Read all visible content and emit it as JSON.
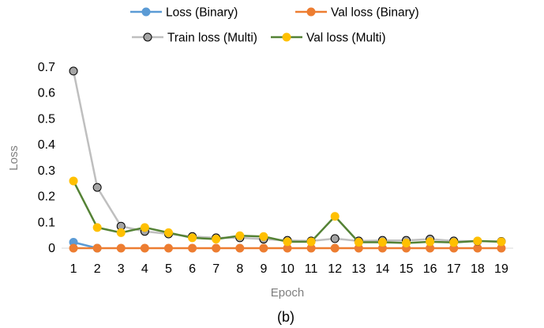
{
  "chart_data": {
    "type": "line",
    "x": [
      1,
      2,
      3,
      4,
      5,
      6,
      7,
      8,
      9,
      10,
      11,
      12,
      13,
      14,
      15,
      16,
      17,
      18,
      19
    ],
    "xlabel": "Epoch",
    "ylabel": "Loss",
    "ylim": [
      0,
      0.7
    ],
    "yticks": [
      0,
      0.1,
      0.2,
      0.3,
      0.4,
      0.5,
      0.6,
      0.7
    ],
    "ytick_labels": [
      "0",
      "0.1",
      "0.2",
      "0.3",
      "0.4",
      "0.5",
      "0.6",
      "0.7"
    ],
    "caption": "(b)",
    "grid": false,
    "legend_position": "top",
    "series": [
      {
        "name": "Loss (Binary)",
        "color": "#5b9bd5",
        "marker_edge": "#5b9bd5",
        "values": [
          0.023,
          0.0,
          null,
          null,
          null,
          null,
          null,
          null,
          null,
          null,
          null,
          null,
          null,
          null,
          null,
          null,
          null,
          null,
          null
        ]
      },
      {
        "name": "Val loss  (Binary)",
        "color": "#ed7d31",
        "marker_edge": "#ed7d31",
        "values": [
          0.0,
          0.0,
          0.0,
          0.0,
          0.0,
          0.0,
          0.0,
          0.0,
          0.0,
          0.0,
          0.0,
          0.0,
          0.0,
          0.0,
          0.0,
          0.0,
          0.0,
          0.0,
          0.0
        ]
      },
      {
        "name": "Train loss (Multi)",
        "color": "#bfbfbf",
        "marker_fill": "#a5a5a5",
        "marker_edge": "#000000",
        "values": [
          0.685,
          0.235,
          0.085,
          0.065,
          0.055,
          0.045,
          0.04,
          0.04,
          0.035,
          0.03,
          0.028,
          0.037,
          0.028,
          0.03,
          0.03,
          0.035,
          0.028,
          0.027,
          0.026
        ]
      },
      {
        "name": "Val loss (Multi)",
        "color": "#548235",
        "marker_fill": "#ffc000",
        "marker_edge": "#ffc000",
        "values": [
          0.26,
          0.08,
          0.06,
          0.08,
          0.06,
          0.04,
          0.035,
          0.048,
          0.045,
          0.025,
          0.025,
          0.123,
          0.023,
          0.023,
          0.02,
          0.025,
          0.022,
          0.028,
          0.025
        ]
      }
    ]
  }
}
